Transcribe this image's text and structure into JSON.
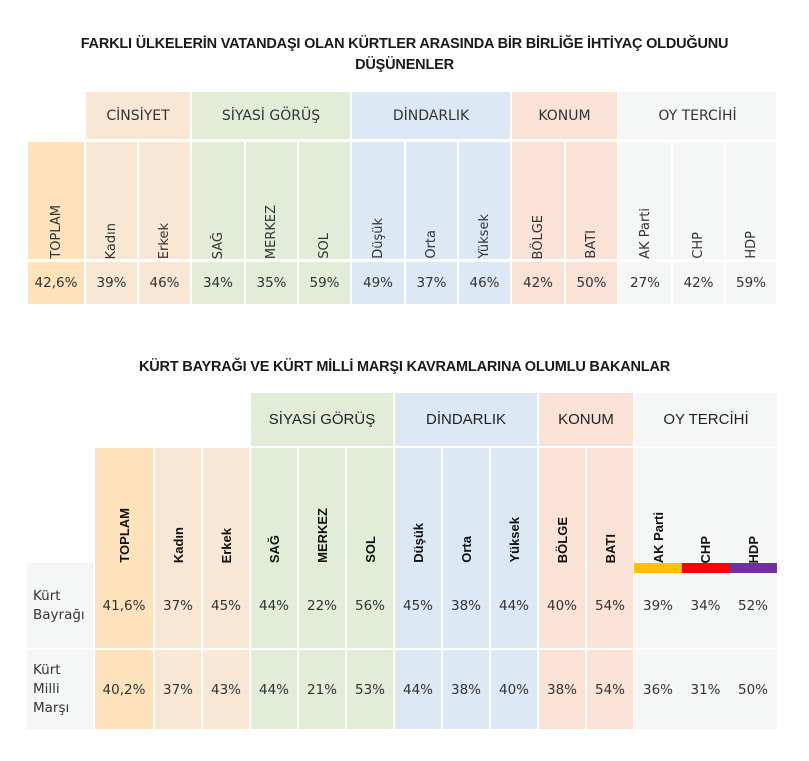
{
  "colors": {
    "toplam": "#FDE2BB",
    "cinsiyet": "#F8E7D4",
    "siyasi": "#E2EDD7",
    "dindarlik": "#DCE8F4",
    "konum": "#FAE2D6",
    "oy": "#F5F7F6",
    "rowlabel": "#F5F7F6",
    "akp": "#FFC000",
    "chp": "#FF0000",
    "hdp": "#7030A0"
  },
  "chart_data": [
    {
      "type": "table",
      "title": "FARKLI ÜLKELERİN VATANDAŞI OLAN KÜRTLER ARASINDA BİR BİRLİĞE İHTİYAÇ OLDUĞUNU DÜŞÜNENLER",
      "groups": [
        {
          "label": "",
          "columns": [
            "TOPLAM"
          ]
        },
        {
          "label": "CİNSİYET",
          "columns": [
            "Kadın",
            "Erkek"
          ]
        },
        {
          "label": "SİYASİ GÖRÜŞ",
          "columns": [
            "SAĞ",
            "MERKEZ",
            "SOL"
          ]
        },
        {
          "label": "DİNDARLIK",
          "columns": [
            "Düşük",
            "Orta",
            "Yüksek"
          ]
        },
        {
          "label": "KONUM",
          "columns": [
            "BÖLGE",
            "BATI"
          ]
        },
        {
          "label": "OY TERCİHİ",
          "columns": [
            "AK Parti",
            "CHP",
            "HDP"
          ]
        }
      ],
      "categories": [
        "TOPLAM",
        "Kadın",
        "Erkek",
        "SAĞ",
        "MERKEZ",
        "SOL",
        "Düşük",
        "Orta",
        "Yüksek",
        "BÖLGE",
        "BATI",
        "AK Parti",
        "CHP",
        "HDP"
      ],
      "values": [
        "42,6%",
        "39%",
        "46%",
        "34%",
        "35%",
        "59%",
        "49%",
        "37%",
        "46%",
        "42%",
        "50%",
        "27%",
        "42%",
        "59%"
      ],
      "values_numeric": [
        42.6,
        39,
        46,
        34,
        35,
        59,
        49,
        37,
        46,
        42,
        50,
        27,
        42,
        59
      ]
    },
    {
      "type": "table",
      "title": "KÜRT BAYRAĞI VE KÜRT MİLLİ MARŞI KAVRAMLARINA OLUMLU BAKANLAR",
      "groups": [
        {
          "label": "",
          "columns": [
            "TOPLAM",
            "Kadın",
            "Erkek"
          ]
        },
        {
          "label": "SİYASİ GÖRÜŞ",
          "columns": [
            "SAĞ",
            "MERKEZ",
            "SOL"
          ]
        },
        {
          "label": "DİNDARLIK",
          "columns": [
            "Düşük",
            "Orta",
            "Yüksek"
          ]
        },
        {
          "label": "KONUM",
          "columns": [
            "BÖLGE",
            "BATI"
          ]
        },
        {
          "label": "OY TERCİHİ",
          "columns": [
            "AK Parti",
            "CHP",
            "HDP"
          ]
        }
      ],
      "categories": [
        "TOPLAM",
        "Kadın",
        "Erkek",
        "SAĞ",
        "MERKEZ",
        "SOL",
        "Düşük",
        "Orta",
        "Yüksek",
        "BÖLGE",
        "BATI",
        "AK Parti",
        "CHP",
        "HDP"
      ],
      "series": [
        {
          "name": "Kürt Bayrağı",
          "values": [
            "41,6%",
            "37%",
            "45%",
            "44%",
            "22%",
            "56%",
            "45%",
            "38%",
            "44%",
            "40%",
            "54%",
            "39%",
            "34%",
            "52%"
          ],
          "values_numeric": [
            41.6,
            37,
            45,
            44,
            22,
            56,
            45,
            38,
            44,
            40,
            54,
            39,
            34,
            52
          ]
        },
        {
          "name": "Kürt Milli Marşı",
          "values": [
            "40,2%",
            "37%",
            "43%",
            "44%",
            "21%",
            "53%",
            "44%",
            "38%",
            "40%",
            "38%",
            "54%",
            "36%",
            "31%",
            "50%"
          ],
          "values_numeric": [
            40.2,
            37,
            43,
            44,
            21,
            53,
            44,
            38,
            40,
            38,
            54,
            36,
            31,
            50
          ]
        }
      ]
    }
  ],
  "table1": {
    "title_line1": "FARKLI ÜLKELERİN VATANDAŞI OLAN KÜRTLER ARASINDA BİR BİRLİĞE İHTİYAÇ OLDUĞUNU",
    "title_line2": "DÜŞÜNENLER",
    "groups": {
      "cinsiyet": "CİNSİYET",
      "siyasi": "SİYASİ GÖRÜŞ",
      "dindarlik": "DİNDARLIK",
      "konum": "KONUM",
      "oy": "OY TERCİHİ"
    },
    "columns": [
      "TOPLAM",
      "Kadın",
      "Erkek",
      "SAĞ",
      "MERKEZ",
      "SOL",
      "Düşük",
      "Orta",
      "Yüksek",
      "BÖLGE",
      "BATI",
      "AK Parti",
      "CHP",
      "HDP"
    ],
    "values": [
      "42,6%",
      "39%",
      "46%",
      "34%",
      "35%",
      "59%",
      "49%",
      "37%",
      "46%",
      "42%",
      "50%",
      "27%",
      "42%",
      "59%"
    ]
  },
  "table2": {
    "title": "KÜRT BAYRAĞI VE KÜRT MİLLİ MARŞI KAVRAMLARINA OLUMLU BAKANLAR",
    "groups": {
      "siyasi": "SİYASİ GÖRÜŞ",
      "dindarlik": "DİNDARLIK",
      "konum": "KONUM",
      "oy": "OY TERCİHİ"
    },
    "columns": [
      "TOPLAM",
      "Kadın",
      "Erkek",
      "SAĞ",
      "MERKEZ",
      "SOL",
      "Düşük",
      "Orta",
      "Yüksek",
      "BÖLGE",
      "BATI",
      "AK Parti",
      "CHP",
      "HDP"
    ],
    "rows": [
      {
        "label": "Kürt\nBayrağı",
        "values": [
          "41,6%",
          "37%",
          "45%",
          "44%",
          "22%",
          "56%",
          "45%",
          "38%",
          "44%",
          "40%",
          "54%",
          "39%",
          "34%",
          "52%"
        ]
      },
      {
        "label": "Kürt\nMilli\nMarşı",
        "values": [
          "40,2%",
          "37%",
          "43%",
          "44%",
          "21%",
          "53%",
          "44%",
          "38%",
          "40%",
          "38%",
          "54%",
          "36%",
          "31%",
          "50%"
        ]
      }
    ]
  }
}
